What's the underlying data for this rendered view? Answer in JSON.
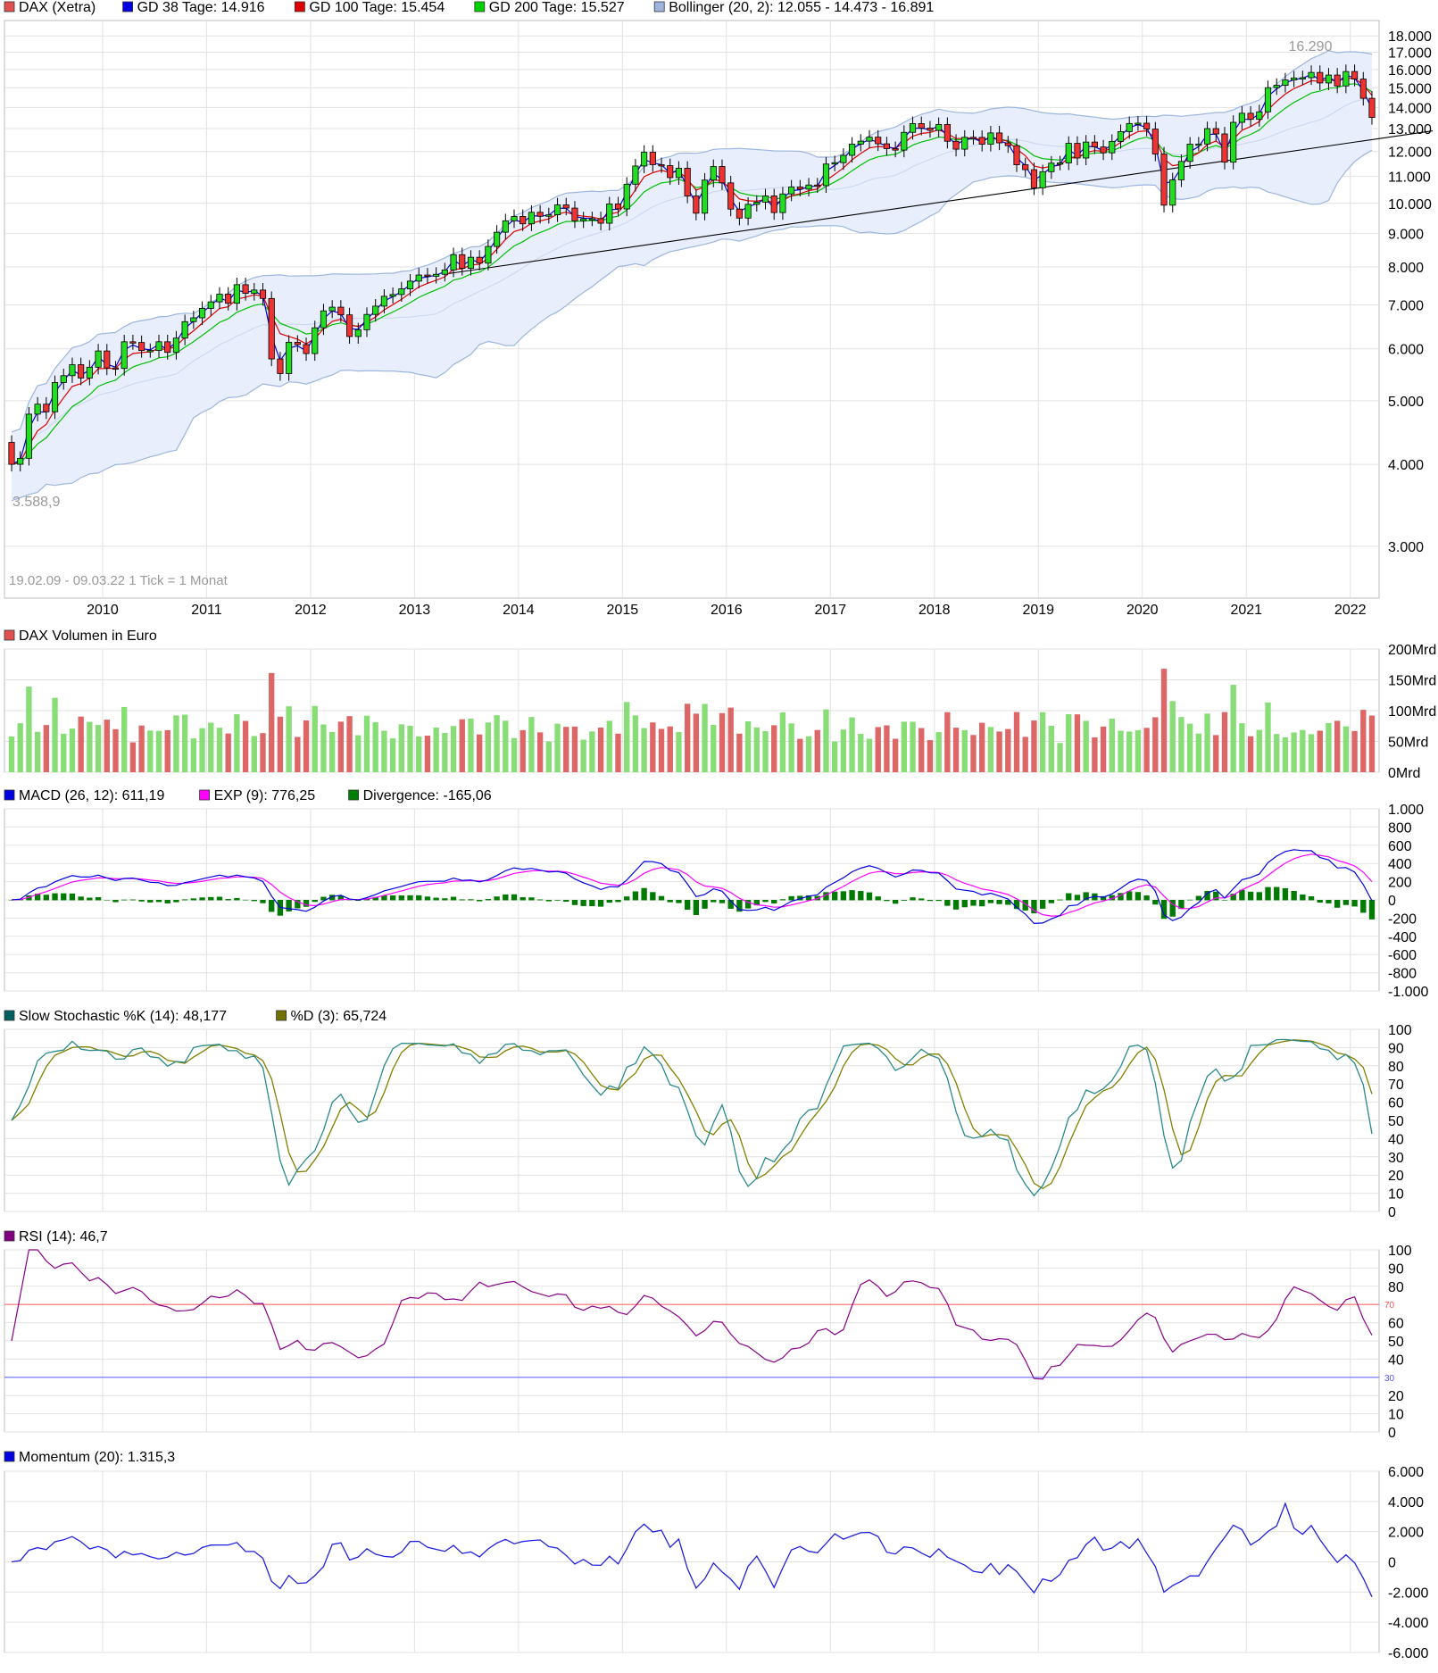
{
  "panels": {
    "price": {
      "legend": [
        {
          "label": "DAX (Xetra)",
          "color": "#e05050"
        },
        {
          "label": "GD 38 Tage: 14.916",
          "color": "#0000e0"
        },
        {
          "label": "GD 100 Tage: 15.454",
          "color": "#e00000"
        },
        {
          "label": "GD 200 Tage: 15.527",
          "color": "#00d000"
        },
        {
          "label": "Bollinger (20, 2): 12.055 - 14.473 - 16.891",
          "color": "#9db5de"
        }
      ],
      "ticks": [
        {
          "value": 3000,
          "label": "3.000"
        },
        {
          "value": 4000,
          "label": "4.000"
        },
        {
          "value": 5000,
          "label": "5.000"
        },
        {
          "value": 6000,
          "label": "6.000"
        },
        {
          "value": 7000,
          "label": "7.000"
        },
        {
          "value": 8000,
          "label": "8.000"
        },
        {
          "value": 9000,
          "label": "9.000"
        },
        {
          "value": 10000,
          "label": "10.000"
        },
        {
          "value": 11000,
          "label": "11.000"
        },
        {
          "value": 12000,
          "label": "12.000"
        },
        {
          "value": 13000,
          "label": "13.000"
        },
        {
          "value": 14000,
          "label": "14.000"
        },
        {
          "value": 15000,
          "label": "15.000"
        },
        {
          "value": 16000,
          "label": "16.000"
        },
        {
          "value": 17000,
          "label": "17.000"
        },
        {
          "value": 18000,
          "label": "18.000"
        }
      ],
      "high_label": "16.290",
      "low_label": "3.588,9",
      "range_note": "19.02.09 - 09.03.22   1 Tick = 1 Monat",
      "years": [
        "2010",
        "2011",
        "2012",
        "2013",
        "2014",
        "2015",
        "2016",
        "2017",
        "2018",
        "2019",
        "2020",
        "2021",
        "2022"
      ]
    },
    "volume": {
      "legend": [
        {
          "label": "DAX Volumen in Euro",
          "color": "#e05050"
        }
      ],
      "ticks": [
        {
          "value": 0,
          "label": "0Mrd"
        },
        {
          "value": 50,
          "label": "50Mrd"
        },
        {
          "value": 100,
          "label": "100Mrd"
        },
        {
          "value": 150,
          "label": "150Mrd"
        },
        {
          "value": 200,
          "label": "200Mrd"
        }
      ]
    },
    "macd": {
      "legend": [
        {
          "label": "MACD (26, 12): 611,19",
          "color": "#0000e0"
        },
        {
          "label": "EXP (9): 776,25",
          "color": "#ff00ff"
        },
        {
          "label": "Divergence: -165,06",
          "color": "#008000"
        }
      ],
      "ticks": [
        {
          "value": 1000,
          "label": "1.000"
        },
        {
          "value": 800,
          "label": "800"
        },
        {
          "value": 600,
          "label": "600"
        },
        {
          "value": 400,
          "label": "400"
        },
        {
          "value": 200,
          "label": "200"
        },
        {
          "value": 0,
          "label": "0"
        },
        {
          "value": -200,
          "label": "-200"
        },
        {
          "value": -400,
          "label": "-400"
        },
        {
          "value": -600,
          "label": "-600"
        },
        {
          "value": -800,
          "label": "-800"
        },
        {
          "value": -1000,
          "label": "-1.000"
        }
      ]
    },
    "stoch": {
      "legend": [
        {
          "label": "Slow Stochastic %K (14): 48,177",
          "color": "#006060"
        },
        {
          "label": "%D (3): 65,724",
          "color": "#707000"
        }
      ],
      "ticks": [
        {
          "value": 100,
          "label": "100"
        },
        {
          "value": 90,
          "label": "90"
        },
        {
          "value": 80,
          "label": "80"
        },
        {
          "value": 70,
          "label": "70"
        },
        {
          "value": 60,
          "label": "60"
        },
        {
          "value": 50,
          "label": "50"
        },
        {
          "value": 40,
          "label": "40"
        },
        {
          "value": 30,
          "label": "30"
        },
        {
          "value": 20,
          "label": "20"
        },
        {
          "value": 10,
          "label": "10"
        },
        {
          "value": 0,
          "label": "0"
        }
      ]
    },
    "rsi": {
      "legend": [
        {
          "label": "RSI (14): 46,7",
          "color": "#800080"
        }
      ],
      "ticks": [
        {
          "value": 100,
          "label": "100"
        },
        {
          "value": 90,
          "label": "90"
        },
        {
          "value": 80,
          "label": "80"
        },
        {
          "value": 60,
          "label": "60"
        },
        {
          "value": 50,
          "label": "50"
        },
        {
          "value": 40,
          "label": "40"
        },
        {
          "value": 20,
          "label": "20"
        },
        {
          "value": 10,
          "label": "10"
        },
        {
          "value": 0,
          "label": "0"
        }
      ],
      "upper_label": "70",
      "lower_label": "30"
    },
    "momentum": {
      "legend": [
        {
          "label": "Momentum (20): 1.315,3",
          "color": "#0000e0"
        }
      ],
      "ticks": [
        {
          "value": 6000,
          "label": "6.000"
        },
        {
          "value": 4000,
          "label": "4.000"
        },
        {
          "value": 2000,
          "label": "2.000"
        },
        {
          "value": 0,
          "label": "0"
        },
        {
          "value": -2000,
          "label": "-2.000"
        },
        {
          "value": -4000,
          "label": "-4.000"
        },
        {
          "value": -6000,
          "label": "-6.000"
        }
      ]
    }
  },
  "chart_data": [
    {
      "type": "line",
      "subtype": "candlestick",
      "x": [
        "2009-02",
        "2009-03",
        "2009-04",
        "2009-05",
        "2009-06",
        "2009-07",
        "2009-08",
        "2009-09",
        "2009-10",
        "2009-11",
        "2009-12",
        "2010-01",
        "2010-02",
        "2010-03",
        "2010-04",
        "2010-05",
        "2010-06",
        "2010-07",
        "2010-08",
        "2010-09",
        "2010-10",
        "2010-11",
        "2010-12",
        "2011-01",
        "2011-02",
        "2011-03",
        "2011-04",
        "2011-05",
        "2011-06",
        "2011-07",
        "2011-08",
        "2011-09",
        "2011-10",
        "2011-11",
        "2011-12",
        "2012-01",
        "2012-02",
        "2012-03",
        "2012-04",
        "2012-05",
        "2012-06",
        "2012-07",
        "2012-08",
        "2012-09",
        "2012-10",
        "2012-11",
        "2012-12",
        "2013-01",
        "2013-02",
        "2013-03",
        "2013-04",
        "2013-05",
        "2013-06",
        "2013-07",
        "2013-08",
        "2013-09",
        "2013-10",
        "2013-11",
        "2013-12",
        "2014-01",
        "2014-02",
        "2014-03",
        "2014-04",
        "2014-05",
        "2014-06",
        "2014-07",
        "2014-08",
        "2014-09",
        "2014-10",
        "2014-11",
        "2014-12",
        "2015-01",
        "2015-02",
        "2015-03",
        "2015-04",
        "2015-05",
        "2015-06",
        "2015-07",
        "2015-08",
        "2015-09",
        "2015-10",
        "2015-11",
        "2015-12",
        "2016-01",
        "2016-02",
        "2016-03",
        "2016-04",
        "2016-05",
        "2016-06",
        "2016-07",
        "2016-08",
        "2016-09",
        "2016-10",
        "2016-11",
        "2016-12",
        "2017-01",
        "2017-02",
        "2017-03",
        "2017-04",
        "2017-05",
        "2017-06",
        "2017-07",
        "2017-08",
        "2017-09",
        "2017-10",
        "2017-11",
        "2017-12",
        "2018-01",
        "2018-02",
        "2018-03",
        "2018-04",
        "2018-05",
        "2018-06",
        "2018-07",
        "2018-08",
        "2018-09",
        "2018-10",
        "2018-11",
        "2018-12",
        "2019-01",
        "2019-02",
        "2019-03",
        "2019-04",
        "2019-05",
        "2019-06",
        "2019-07",
        "2019-08",
        "2019-09",
        "2019-10",
        "2019-11",
        "2019-12",
        "2020-01",
        "2020-02",
        "2020-03",
        "2020-04",
        "2020-05",
        "2020-06",
        "2020-07",
        "2020-08",
        "2020-09",
        "2020-10",
        "2020-11",
        "2020-12",
        "2021-01",
        "2021-02",
        "2021-03",
        "2021-04",
        "2021-05",
        "2021-06",
        "2021-07",
        "2021-08",
        "2021-09",
        "2021-10",
        "2021-11",
        "2021-12",
        "2022-01",
        "2022-02",
        "2022-03"
      ],
      "close": [
        4000,
        4085,
        4770,
        4940,
        4810,
        5330,
        5460,
        5675,
        5415,
        5625,
        5955,
        5610,
        5600,
        6150,
        6135,
        5965,
        5965,
        6150,
        5925,
        6230,
        6600,
        6690,
        6915,
        7075,
        7270,
        7040,
        7515,
        7290,
        7375,
        7160,
        5790,
        5500,
        6140,
        6090,
        5900,
        6460,
        6855,
        6945,
        6760,
        6265,
        6415,
        6770,
        6970,
        7215,
        7260,
        7405,
        7610,
        7775,
        7740,
        7795,
        7915,
        8350,
        7960,
        8275,
        8105,
        8595,
        9035,
        9405,
        9550,
        9305,
        9690,
        9555,
        9605,
        9945,
        9835,
        9405,
        9470,
        9475,
        9325,
        9980,
        9805,
        10695,
        11400,
        11965,
        11455,
        11415,
        10945,
        11310,
        10260,
        9660,
        10850,
        11380,
        10745,
        9800,
        9495,
        9965,
        10040,
        10265,
        9680,
        10335,
        10590,
        10510,
        10665,
        10640,
        11480,
        11535,
        11835,
        12310,
        12440,
        12615,
        12325,
        12120,
        12055,
        12830,
        13230,
        13025,
        12920,
        13190,
        12435,
        12095,
        12610,
        12605,
        12305,
        12805,
        12365,
        12245,
        11450,
        11255,
        10560,
        11175,
        11515,
        11525,
        12345,
        11725,
        12400,
        12190,
        11940,
        12430,
        12865,
        13235,
        13250,
        12980,
        11890,
        9935,
        10860,
        11585,
        12310,
        12315,
        13000,
        12760,
        11555,
        13290,
        13720,
        13430,
        13790,
        15010,
        15135,
        15420,
        15530,
        15545,
        15835,
        15260,
        15690,
        15100,
        15885,
        15470,
        14460,
        13520
      ],
      "ylim": [
        2500,
        19000
      ],
      "scale": "log",
      "title": "",
      "ylabel": "",
      "xlabel": ""
    },
    {
      "type": "bar",
      "series": [
        {
          "name": "DAX Volumen in Euro"
        }
      ],
      "ylim": [
        0,
        200
      ]
    },
    {
      "type": "line",
      "series": [
        {
          "name": "MACD (26, 12)"
        },
        {
          "name": "EXP (9)"
        },
        {
          "name": "Divergence"
        }
      ],
      "ylim": [
        -1000,
        1000
      ]
    },
    {
      "type": "line",
      "series": [
        {
          "name": "Slow Stochastic %K (14)"
        },
        {
          "name": "%D (3)"
        }
      ],
      "ylim": [
        0,
        100
      ]
    },
    {
      "type": "line",
      "series": [
        {
          "name": "RSI (14)"
        }
      ],
      "ylim": [
        0,
        100
      ]
    },
    {
      "type": "line",
      "series": [
        {
          "name": "Momentum (20)"
        }
      ],
      "ylim": [
        -6000,
        6000
      ]
    }
  ]
}
